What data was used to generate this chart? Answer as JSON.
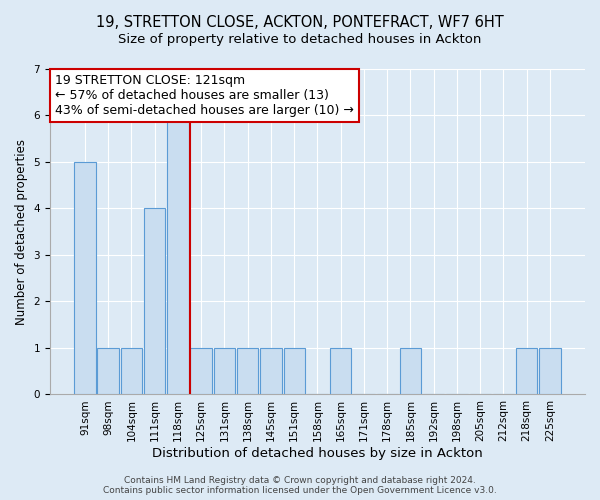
{
  "title1": "19, STRETTON CLOSE, ACKTON, PONTEFRACT, WF7 6HT",
  "title2": "Size of property relative to detached houses in Ackton",
  "xlabel": "Distribution of detached houses by size in Ackton",
  "ylabel": "Number of detached properties",
  "categories": [
    "91sqm",
    "98sqm",
    "104sqm",
    "111sqm",
    "118sqm",
    "125sqm",
    "131sqm",
    "138sqm",
    "145sqm",
    "151sqm",
    "158sqm",
    "165sqm",
    "171sqm",
    "178sqm",
    "185sqm",
    "192sqm",
    "198sqm",
    "205sqm",
    "212sqm",
    "218sqm",
    "225sqm"
  ],
  "values": [
    5,
    1,
    1,
    4,
    6,
    1,
    1,
    1,
    1,
    1,
    0,
    1,
    0,
    0,
    1,
    0,
    0,
    0,
    0,
    1,
    1
  ],
  "bar_color": "#c9ddf0",
  "bar_edge_color": "#5b9bd5",
  "reference_line_color": "#cc0000",
  "annotation_line1": "19 STRETTON CLOSE: 121sqm",
  "annotation_line2": "← 57% of detached houses are smaller (13)",
  "annotation_line3": "43% of semi-detached houses are larger (10) →",
  "annotation_box_edge_color": "#cc0000",
  "annotation_box_face_color": "white",
  "ylim": [
    0,
    7
  ],
  "yticks": [
    0,
    1,
    2,
    3,
    4,
    5,
    6,
    7
  ],
  "footer1": "Contains HM Land Registry data © Crown copyright and database right 2024.",
  "footer2": "Contains public sector information licensed under the Open Government Licence v3.0.",
  "bg_color": "#ddeaf5",
  "plot_bg_color": "#ddeaf5",
  "title1_fontsize": 10.5,
  "title2_fontsize": 9.5,
  "xlabel_fontsize": 9.5,
  "ylabel_fontsize": 8.5,
  "tick_fontsize": 7.5,
  "footer_fontsize": 6.5,
  "annotation_fontsize": 9
}
